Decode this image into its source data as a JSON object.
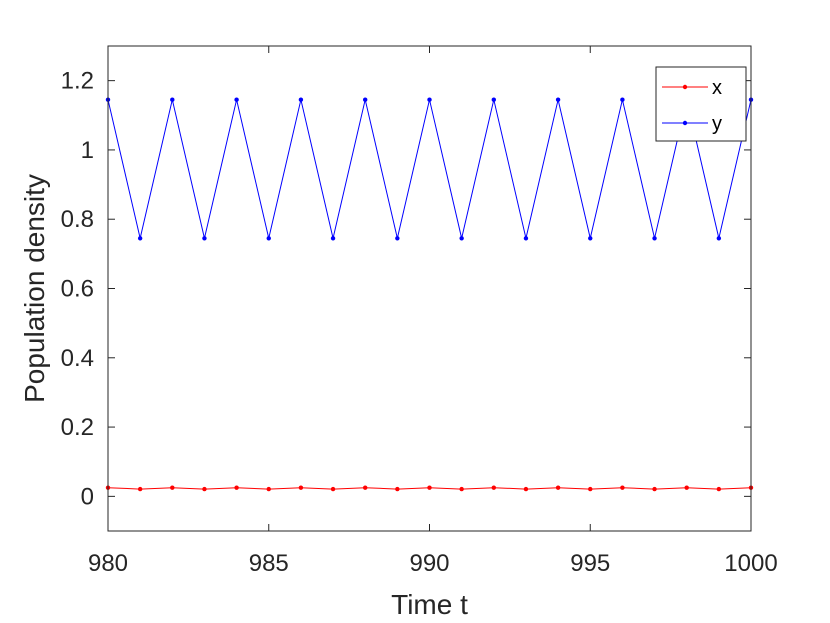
{
  "chart_data": {
    "type": "line",
    "title": "",
    "xlabel": "Time t",
    "ylabel": "Population density",
    "xlim": [
      980,
      1000
    ],
    "ylim": [
      -0.1,
      1.3
    ],
    "xticks": [
      "980",
      "985",
      "990",
      "995",
      "1000"
    ],
    "yticks": [
      "0",
      "0.2",
      "0.4",
      "0.6",
      "0.8",
      "1",
      "1.2"
    ],
    "grid": false,
    "legend_position": "top-right",
    "x": [
      980,
      981,
      982,
      983,
      984,
      985,
      986,
      987,
      988,
      989,
      990,
      991,
      992,
      993,
      994,
      995,
      996,
      997,
      998,
      999,
      1000
    ],
    "series": [
      {
        "name": "x",
        "color": "#ff0000",
        "marker": "dot",
        "values": [
          0.025,
          0.021,
          0.025,
          0.021,
          0.025,
          0.021,
          0.025,
          0.021,
          0.025,
          0.021,
          0.025,
          0.021,
          0.025,
          0.021,
          0.025,
          0.021,
          0.025,
          0.021,
          0.025,
          0.021,
          0.025
        ]
      },
      {
        "name": "y",
        "color": "#0000ff",
        "marker": "dot",
        "values": [
          1.145,
          0.745,
          1.145,
          0.745,
          1.145,
          0.745,
          1.145,
          0.745,
          1.145,
          0.745,
          1.145,
          0.745,
          1.145,
          0.745,
          1.145,
          0.745,
          1.145,
          0.745,
          1.145,
          0.745,
          1.145
        ]
      }
    ]
  }
}
